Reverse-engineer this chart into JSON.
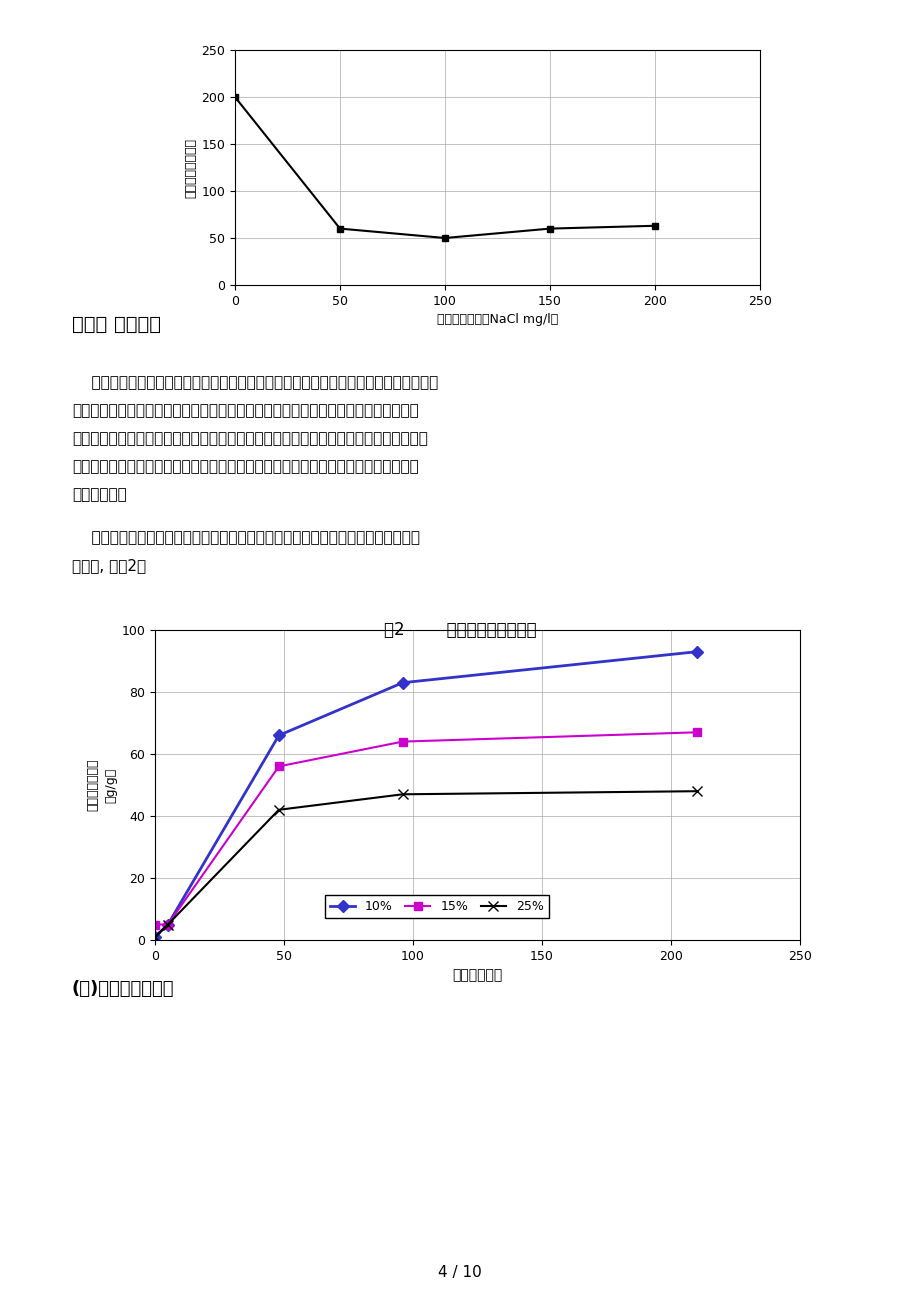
{
  "chart1": {
    "x": [
      0,
      50,
      100,
      150,
      200
    ],
    "y": [
      200,
      60,
      50,
      60,
      63
    ],
    "xlabel": "含盐量的浓度（NaCl mg/l）",
    "ylabel": "膨胀体积（倍数）",
    "xlim": [
      0,
      250
    ],
    "ylim": [
      0,
      250
    ],
    "xticks": [
      0,
      50,
      100,
      150,
      200,
      250
    ],
    "yticks": [
      0,
      50,
      100,
      150,
      200,
      250
    ],
    "color": "#000000",
    "marker": "s"
  },
  "chart2": {
    "title": "图2        颗粒凝胶的膨胀速度",
    "xlabel": "时间（小时）",
    "ylabel": "每克干胶吸水量\n（g/g）",
    "xlim": [
      0,
      250
    ],
    "ylim": [
      0,
      100
    ],
    "xticks": [
      0,
      50,
      100,
      150,
      200,
      250
    ],
    "yticks": [
      0,
      20,
      40,
      60,
      80,
      100
    ],
    "series": [
      {
        "label": "10%",
        "x": [
          0,
          5,
          48,
          96,
          210
        ],
        "y": [
          1,
          5,
          66,
          83,
          93
        ],
        "color": "#3333CC",
        "marker": "D",
        "linewidth": 2.0,
        "markersize": 6
      },
      {
        "label": "15%",
        "x": [
          0,
          5,
          48,
          96,
          210
        ],
        "y": [
          5,
          5,
          56,
          64,
          67
        ],
        "color": "#CC00CC",
        "marker": "s",
        "linewidth": 1.5,
        "markersize": 6
      },
      {
        "label": "25%",
        "x": [
          0,
          5,
          48,
          96,
          210
        ],
        "y": [
          1,
          5,
          42,
          47,
          48
        ],
        "color": "#000000",
        "marker": "x",
        "linewidth": 1.5,
        "markersize": 7
      }
    ]
  },
  "section3_heading": "（三） 膨胀速度",
  "para1_lines": [
    "膨胀速度是衡量颗粒性能的一个重要标志，一般来说，作业措施目的不同对膨胀速度的",
    "要求也不一致，如进行堵堆或者浅调作业，选择膨胀速度较慢的颗粒较为合适，在颗粒",
    "未完全膨胀之前将颗粒注入到目的层，这有利于颗粒的封堵，如进行深调作业，则应选择",
    "膨胀速度较快的颗粒，在颗粒完全膨胀后将颗粒注入到地层，有利于颗粒在裂缝或高渗",
    "透带内运移。"
  ],
  "para2_lines": [
    "    颗粒的膨胀速度主要受配制水中含盐量和温度的影响，在盐水中的膨胀速度得到大",
    "大延缓, 见图2。"
  ],
  "section4_heading": "(四)耐冲刷能力评价",
  "page_number": "4 / 10",
  "background_color": "#ffffff"
}
